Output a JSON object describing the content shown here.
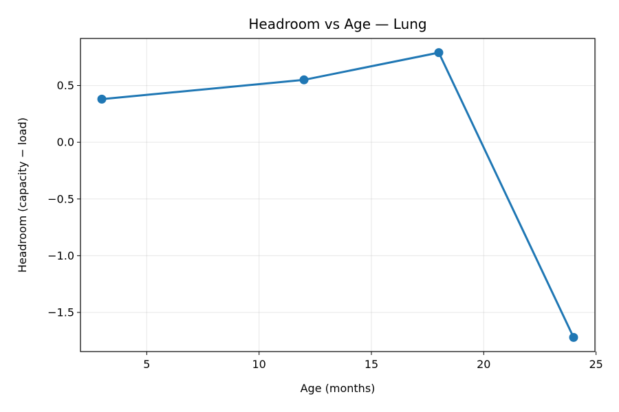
{
  "chart_data": {
    "type": "line",
    "title": "Headroom vs Age — Lung",
    "xlabel": "Age (months)",
    "ylabel": "Headroom (capacity − load)",
    "xlim": [
      2.05,
      24.95
    ],
    "ylim": [
      -1.845,
      0.915
    ],
    "xticks": [
      5,
      10,
      15,
      20,
      25
    ],
    "xtick_labels": [
      "5",
      "10",
      "15",
      "20",
      "25"
    ],
    "yticks": [
      -1.5,
      -1.0,
      -0.5,
      0.0,
      0.5
    ],
    "ytick_labels": [
      "−1.5",
      "−1.0",
      "−0.5",
      "0.0",
      "0.5"
    ],
    "grid": true,
    "series": [
      {
        "color": "#1f77b4",
        "marker": "circle",
        "x": [
          3,
          12,
          18,
          24
        ],
        "y": [
          0.38,
          0.55,
          0.79,
          -1.72
        ]
      }
    ]
  }
}
